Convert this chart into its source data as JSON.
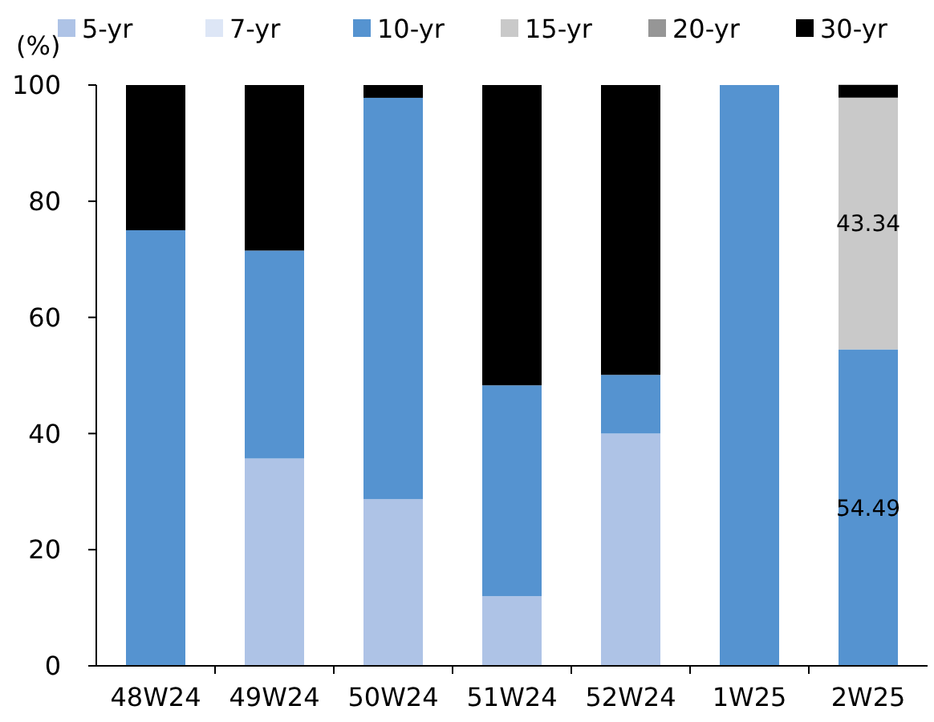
{
  "chart_data": {
    "type": "bar",
    "stacked": true,
    "ylabel": "(%)",
    "categories": [
      "48W24",
      "49W24",
      "50W24",
      "51W24",
      "52W24",
      "1W25",
      "2W25"
    ],
    "series": [
      {
        "name": "5-yr",
        "color": "#aec3e6",
        "values": [
          0,
          35.7,
          28.7,
          12.0,
          40.0,
          0,
          0
        ]
      },
      {
        "name": "7-yr",
        "color": "#dde6f6",
        "values": [
          0,
          0,
          0,
          0,
          0,
          0,
          0
        ]
      },
      {
        "name": "10-yr",
        "color": "#5593d0",
        "values": [
          75.0,
          35.8,
          69.1,
          36.3,
          10.1,
          100,
          54.49
        ],
        "value_labels": [
          null,
          null,
          null,
          null,
          null,
          null,
          "54.49"
        ]
      },
      {
        "name": "15-yr",
        "color": "#c9c9c9",
        "values": [
          0,
          0,
          0,
          0,
          0,
          0,
          43.34
        ],
        "value_labels": [
          null,
          null,
          null,
          null,
          null,
          null,
          "43.34"
        ]
      },
      {
        "name": "20-yr",
        "color": "#969696",
        "values": [
          0,
          0,
          0,
          0,
          0,
          0,
          0
        ]
      },
      {
        "name": "30-yr",
        "color": "#000000",
        "values": [
          25.0,
          28.5,
          2.2,
          51.7,
          49.9,
          0,
          2.2
        ]
      }
    ],
    "ylim": [
      0,
      100
    ],
    "yticks": [
      0,
      20,
      40,
      60,
      80,
      100
    ],
    "grid": false,
    "legend": "top"
  }
}
